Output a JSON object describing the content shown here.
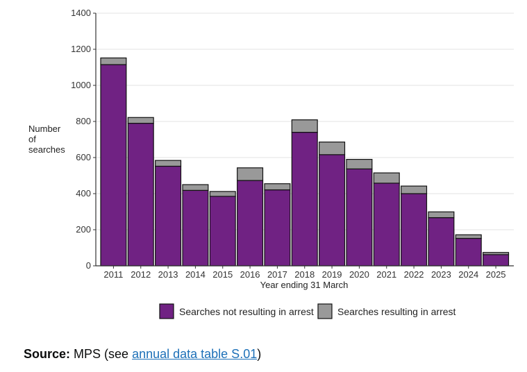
{
  "chart_data": {
    "type": "bar",
    "stacked": true,
    "categories": [
      "2011",
      "2012",
      "2013",
      "2014",
      "2015",
      "2016",
      "2017",
      "2018",
      "2019",
      "2020",
      "2021",
      "2022",
      "2023",
      "2024",
      "2025"
    ],
    "series": [
      {
        "name": "Searches not resulting in arrest",
        "color": "#702283",
        "values": [
          1115,
          790,
          552,
          418,
          385,
          473,
          421,
          740,
          616,
          537,
          458,
          400,
          267,
          152,
          62
        ]
      },
      {
        "name": "Searches resulting in arrest",
        "color": "#999999",
        "values": [
          37,
          32,
          32,
          32,
          27,
          70,
          34,
          69,
          70,
          53,
          57,
          42,
          32,
          20,
          12
        ]
      }
    ],
    "ylabel": "Number of searches",
    "ylabel_lines": [
      "Number",
      "of",
      "searches"
    ],
    "xlabel": "Year ending 31 March",
    "ylim": [
      0,
      1400
    ],
    "yticks": [
      0,
      200,
      400,
      600,
      800,
      1000,
      1200,
      1400
    ],
    "grid": true,
    "legend_position": "bottom"
  },
  "source": {
    "label": "Source:",
    "text_before": " MPS (see ",
    "link_text": "annual data table S.01",
    "text_after": ")"
  }
}
